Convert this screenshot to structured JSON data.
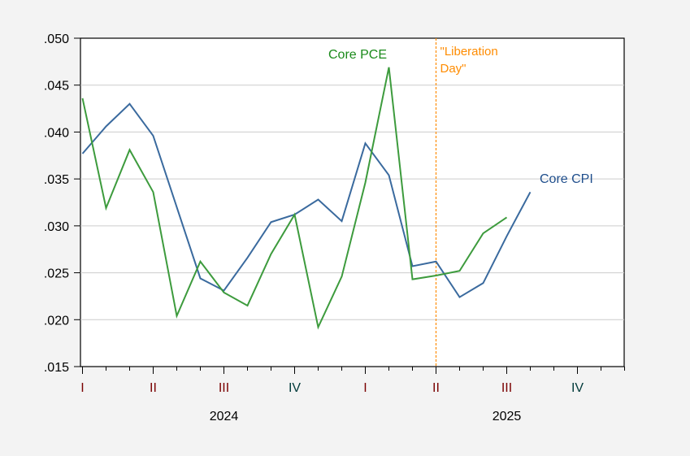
{
  "chart_data": {
    "type": "line",
    "title": "",
    "xlabel": "",
    "ylabel": "",
    "ylim": [
      0.015,
      0.05
    ],
    "y_ticks": [
      ".015",
      ".020",
      ".025",
      ".030",
      ".035",
      ".040",
      ".045",
      ".050"
    ],
    "y_tick_values": [
      0.015,
      0.02,
      0.025,
      0.03,
      0.035,
      0.04,
      0.045,
      0.05
    ],
    "grid": true,
    "x_periods": 24,
    "x_start": "2024-01",
    "quarter_labels": [
      {
        "label": "I",
        "month_index": 0,
        "color": "#7a0000"
      },
      {
        "label": "II",
        "month_index": 3,
        "color": "#7a0000"
      },
      {
        "label": "III",
        "month_index": 6,
        "color": "#7a0000"
      },
      {
        "label": "IV",
        "month_index": 9,
        "color": "#003a3a"
      },
      {
        "label": "I",
        "month_index": 12,
        "color": "#7a0000"
      },
      {
        "label": "II",
        "month_index": 15,
        "color": "#7a0000"
      },
      {
        "label": "III",
        "month_index": 18,
        "color": "#7a0000"
      },
      {
        "label": "IV",
        "month_index": 21,
        "color": "#003a3a"
      }
    ],
    "year_labels": [
      {
        "label": "2024",
        "month_index": 6
      },
      {
        "label": "2025",
        "month_index": 18
      }
    ],
    "series": [
      {
        "name": "Core CPI",
        "color": "#3a6a9e",
        "label_color": "#1f4e8c",
        "values": [
          0.0377,
          0.0406,
          0.043,
          0.0396,
          0.032,
          0.0244,
          0.0231,
          0.0266,
          0.0304,
          0.0312,
          0.0328,
          0.0305,
          0.0388,
          0.0354,
          0.0257,
          0.0262,
          0.0224,
          0.0239,
          0.0289,
          0.0336
        ]
      },
      {
        "name": "Core PCE",
        "color": "#3d9b3d",
        "label_color": "#1a8a1a",
        "values": [
          0.0436,
          0.0319,
          0.0381,
          0.0336,
          0.0204,
          0.0262,
          0.0229,
          0.0215,
          0.027,
          0.0312,
          0.0192,
          0.0246,
          0.0346,
          0.0469,
          0.0243,
          0.0247,
          0.0252,
          0.0292,
          0.0309
        ]
      }
    ],
    "annotations": [
      {
        "text_lines": [
          "\"Liberation",
          "Day\""
        ],
        "month_index": 15,
        "color": "#ff8c00",
        "style": "dashed-vertical-line"
      }
    ]
  }
}
